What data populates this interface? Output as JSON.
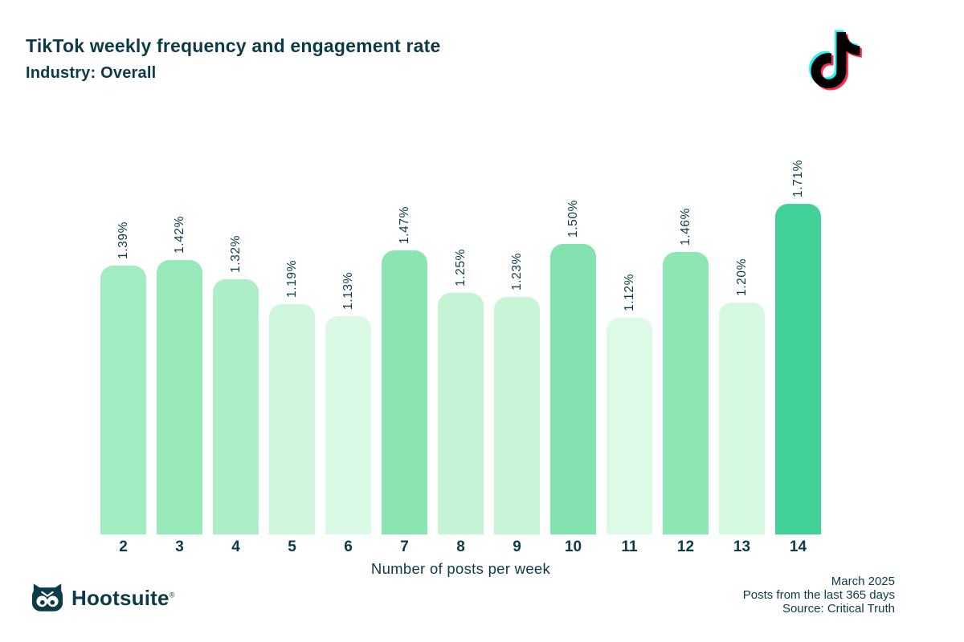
{
  "header": {
    "title": "TikTok weekly frequency and engagement rate",
    "subtitle": "Industry: Overall"
  },
  "logos": {
    "tiktok_icon": "tiktok-logo",
    "hootsuite_owl_icon": "hootsuite-owl",
    "hootsuite_wordmark": "Hootsuite",
    "hootsuite_registered": "®"
  },
  "chart_data": {
    "type": "bar",
    "title": "TikTok weekly frequency and engagement rate",
    "subtitle": "Industry: Overall",
    "categories": [
      "2",
      "3",
      "4",
      "5",
      "6",
      "7",
      "8",
      "9",
      "10",
      "11",
      "12",
      "13",
      "14"
    ],
    "values": [
      1.39,
      1.42,
      1.32,
      1.19,
      1.13,
      1.47,
      1.25,
      1.23,
      1.5,
      1.12,
      1.46,
      1.2,
      1.71
    ],
    "value_labels": [
      "1.39%",
      "1.42%",
      "1.32%",
      "1.19%",
      "1.13%",
      "1.47%",
      "1.25%",
      "1.23%",
      "1.50%",
      "1.12%",
      "1.46%",
      "1.20%",
      "1.71%"
    ],
    "bar_colors": [
      "#a2ecc1",
      "#97e9ba",
      "#adeec8",
      "#cdf6dc",
      "#dafae6",
      "#8be5b3",
      "#c5f3d6",
      "#c8f4d8",
      "#83e2af",
      "#ddfae7",
      "#8ee6b5",
      "#d5f8e1",
      "#40d098"
    ],
    "bar_dotted": [
      false,
      false,
      false,
      false,
      true,
      true,
      false,
      false,
      false,
      false,
      false,
      true,
      false
    ],
    "xlabel": "Number of posts per week",
    "ylabel": "",
    "ylim": [
      0,
      1.8
    ],
    "grid": false,
    "axis_lines": false,
    "legend": "none",
    "value_label_rotation": -90,
    "ink_color": "#0d3a49",
    "tiktok_colors": {
      "cyan": "#25f4ee",
      "red": "#fe2c55",
      "black": "#010101"
    }
  },
  "footer": {
    "date": "March 2025",
    "range": "Posts from the last 365 days",
    "source": "Source: Critical Truth"
  }
}
